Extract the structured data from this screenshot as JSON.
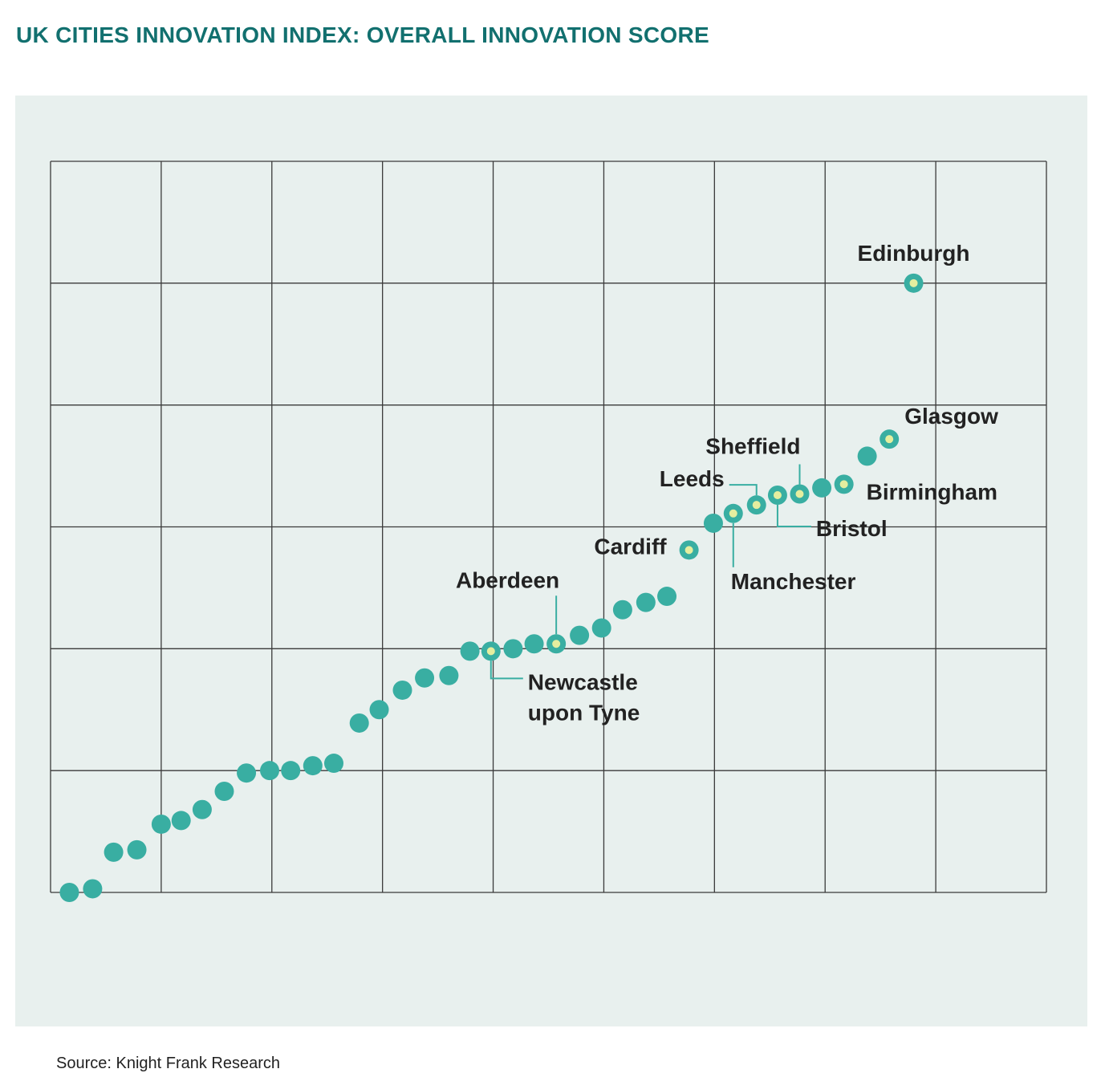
{
  "header": {
    "title": "UK CITIES INNOVATION INDEX: OVERALL INNOVATION SCORE"
  },
  "footer": {
    "source": "Source: Knight Frank Research"
  },
  "colors": {
    "title": "#12706f",
    "panel_background": "#e8f0ee",
    "grid": "#3a3a3a",
    "marker": "#39aea2",
    "highlight_fill": "#e5ee9f",
    "leader": "#39aea2",
    "label": "#222222"
  },
  "chart_data": {
    "type": "scatter",
    "title": "UK CITIES INNOVATION INDEX: OVERALL INNOVATION SCORE",
    "xlabel": "",
    "ylabel": "",
    "xlim": [
      0,
      9
    ],
    "ylim": [
      0,
      6
    ],
    "grid": true,
    "legend": "none",
    "series": [
      {
        "values": [
          {
            "x": 0.17,
            "y": 0.0
          },
          {
            "x": 0.38,
            "y": 0.03
          },
          {
            "x": 0.57,
            "y": 0.33
          },
          {
            "x": 0.78,
            "y": 0.35
          },
          {
            "x": 1.0,
            "y": 0.56
          },
          {
            "x": 1.18,
            "y": 0.59
          },
          {
            "x": 1.37,
            "y": 0.68
          },
          {
            "x": 1.57,
            "y": 0.83
          },
          {
            "x": 1.77,
            "y": 0.98
          },
          {
            "x": 1.98,
            "y": 1.0
          },
          {
            "x": 2.17,
            "y": 1.0
          },
          {
            "x": 2.37,
            "y": 1.04
          },
          {
            "x": 2.56,
            "y": 1.06
          },
          {
            "x": 2.79,
            "y": 1.39
          },
          {
            "x": 2.97,
            "y": 1.5
          },
          {
            "x": 3.18,
            "y": 1.66
          },
          {
            "x": 3.38,
            "y": 1.76
          },
          {
            "x": 3.6,
            "y": 1.78
          },
          {
            "x": 3.79,
            "y": 1.98
          },
          {
            "x": 3.98,
            "y": 1.98,
            "label": "Newcastle upon Tyne"
          },
          {
            "x": 4.18,
            "y": 2.0
          },
          {
            "x": 4.37,
            "y": 2.04
          },
          {
            "x": 4.57,
            "y": 2.04,
            "label": "Aberdeen"
          },
          {
            "x": 4.78,
            "y": 2.11
          },
          {
            "x": 4.98,
            "y": 2.17
          },
          {
            "x": 5.17,
            "y": 2.32
          },
          {
            "x": 5.38,
            "y": 2.38
          },
          {
            "x": 5.57,
            "y": 2.43
          },
          {
            "x": 5.77,
            "y": 2.81,
            "label": "Cardiff"
          },
          {
            "x": 5.99,
            "y": 3.03
          },
          {
            "x": 6.17,
            "y": 3.11,
            "label": "Manchester"
          },
          {
            "x": 6.38,
            "y": 3.18,
            "label": "Leeds"
          },
          {
            "x": 6.57,
            "y": 3.26,
            "label": "Bristol"
          },
          {
            "x": 6.77,
            "y": 3.27,
            "label": "Sheffield"
          },
          {
            "x": 6.97,
            "y": 3.32
          },
          {
            "x": 7.17,
            "y": 3.35,
            "label": "Birmingham"
          },
          {
            "x": 7.38,
            "y": 3.58
          },
          {
            "x": 7.58,
            "y": 3.72,
            "label": "Glasgow"
          },
          {
            "x": 7.8,
            "y": 5.0,
            "label": "Edinburgh"
          }
        ]
      }
    ]
  }
}
